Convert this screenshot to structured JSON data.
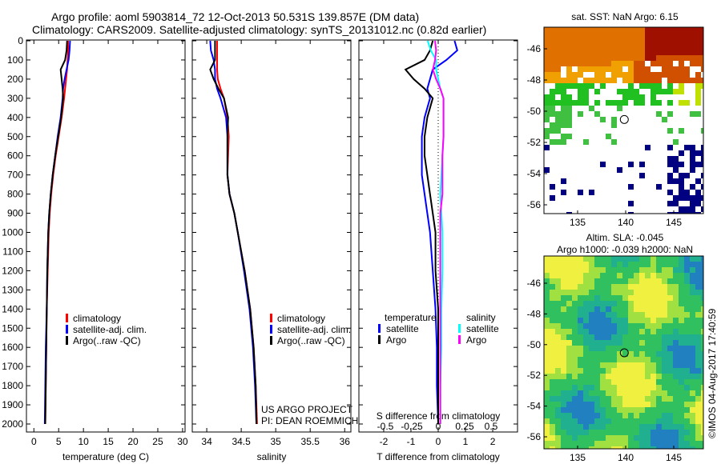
{
  "title_line1": "Argo profile: aoml 5903814_72 12-Oct-2013 50.531S 139.857E (DM data)",
  "title_line2": "Climatology: CARS2009. Satellite-adjusted climatology: synTS_20131012.nc (0.82d earlier)",
  "colors": {
    "climatology": "#ff0000",
    "satellite": "#0000ff",
    "argo": "#000000",
    "sal_satellite": "#00ffff",
    "sal_argo": "#ff00ff"
  },
  "chart_data": [
    {
      "type": "line",
      "xlabel": "temperature (deg C)",
      "ylabel": "depth",
      "xlim": [
        -1.5,
        30.5
      ],
      "ylim": [
        2040,
        0
      ],
      "xticks": [
        0,
        5,
        10,
        15,
        20,
        25,
        30
      ],
      "yticks": [
        0,
        100,
        200,
        300,
        400,
        500,
        600,
        700,
        800,
        900,
        1000,
        1100,
        1200,
        1300,
        1400,
        1500,
        1600,
        1700,
        1800,
        1900,
        2000
      ],
      "legend": [
        "climatology",
        "satellite-adj. clim.",
        "Argo(..raw -QC)"
      ],
      "depth": [
        0,
        50,
        100,
        150,
        200,
        250,
        300,
        400,
        500,
        600,
        700,
        800,
        900,
        1000,
        1200,
        1400,
        1600,
        1800,
        2000
      ],
      "series": [
        {
          "name": "climatology",
          "values": [
            6.9,
            6.9,
            6.8,
            6.7,
            6.5,
            6.3,
            6.1,
            5.6,
            5.0,
            4.4,
            3.9,
            3.5,
            3.2,
            3.0,
            2.8,
            2.6,
            2.5,
            2.4,
            2.3
          ]
        },
        {
          "name": "satellite-adj. clim.",
          "values": [
            7.3,
            7.2,
            7.0,
            6.6,
            6.2,
            5.9,
            5.8,
            5.4,
            4.8,
            4.3,
            3.8,
            3.4,
            3.1,
            2.9,
            2.7,
            2.6,
            2.4,
            2.3,
            2.2
          ]
        },
        {
          "name": "Argo(..raw -QC)",
          "values": [
            6.7,
            6.6,
            6.3,
            5.4,
            5.6,
            5.8,
            5.9,
            5.5,
            4.9,
            4.3,
            3.8,
            3.4,
            3.1,
            2.9,
            2.7,
            2.6,
            2.5,
            2.4,
            2.3
          ]
        }
      ]
    },
    {
      "type": "line",
      "xlabel": "salinity",
      "xlim": [
        33.79,
        36.09
      ],
      "ylim": [
        2040,
        0
      ],
      "xticks": [
        34,
        34.5,
        35,
        35.5,
        36
      ],
      "legend": [
        "climatology",
        "satellite-adj. clim.",
        "Argo(..raw -QC)"
      ],
      "depth": [
        0,
        50,
        100,
        150,
        200,
        250,
        300,
        400,
        500,
        600,
        700,
        800,
        900,
        1000,
        1200,
        1400,
        1600,
        1800,
        2000
      ],
      "series": [
        {
          "name": "climatology",
          "values": [
            34.15,
            34.15,
            34.15,
            34.15,
            34.16,
            34.2,
            34.25,
            34.3,
            34.32,
            34.31,
            34.3,
            34.33,
            34.4,
            34.45,
            34.55,
            34.63,
            34.68,
            34.71,
            34.73
          ]
        },
        {
          "name": "satellite-adj. clim.",
          "values": [
            34.05,
            34.06,
            34.1,
            34.12,
            34.12,
            34.15,
            34.2,
            34.28,
            34.3,
            34.3,
            34.3,
            34.33,
            34.4,
            34.45,
            34.54,
            34.62,
            34.67,
            34.7,
            34.72
          ]
        },
        {
          "name": "Argo(..raw -QC)",
          "values": [
            34.12,
            34.12,
            34.12,
            34.05,
            34.1,
            34.17,
            34.25,
            34.31,
            34.3,
            34.3,
            34.3,
            34.33,
            34.4,
            34.45,
            34.55,
            34.63,
            34.68,
            34.71,
            34.72
          ]
        }
      ]
    },
    {
      "type": "line",
      "xlabel": "T difference from climatology",
      "x2label": "S difference from climatology",
      "xlim": [
        -2.91,
        2.91
      ],
      "x2lim": [
        -0.75,
        0.75
      ],
      "xticks": [
        -2,
        -1,
        0,
        1,
        2
      ],
      "x2ticks": [
        -0.5,
        -0.25,
        0,
        0.25,
        0.5
      ],
      "x2ticklabels": [
        "-0.5",
        "-0.25",
        "0",
        "0.25",
        "0.5"
      ],
      "legend_headers": [
        "temperature",
        "salinity"
      ],
      "legend": [
        "satellite",
        "Argo",
        "satellite",
        "Argo"
      ],
      "depth": [
        0,
        50,
        100,
        150,
        200,
        250,
        300,
        400,
        500,
        600,
        700,
        800,
        900,
        1000,
        1200,
        1400,
        1600,
        1800,
        2000
      ],
      "series": [
        {
          "name": "T satellite",
          "axis": "T",
          "values": [
            0.6,
            0.7,
            0.3,
            -0.2,
            -0.3,
            -0.4,
            -0.3,
            -0.5,
            -0.6,
            -0.6,
            -0.6,
            -0.5,
            -0.4,
            -0.3,
            -0.2,
            -0.1,
            -0.05,
            -0.05,
            0
          ]
        },
        {
          "name": "T Argo",
          "axis": "T",
          "values": [
            -0.2,
            -0.3,
            -0.5,
            -1.2,
            -0.9,
            -0.5,
            -0.2,
            -0.4,
            -0.5,
            -0.5,
            -0.4,
            -0.3,
            -0.2,
            -0.1,
            -0.1,
            0,
            0,
            0,
            0
          ]
        },
        {
          "name": "S satellite",
          "axis": "S",
          "values": [
            -0.1,
            -0.07,
            -0.02,
            -0.02,
            0.0,
            0.02,
            0.05,
            0.05,
            0.05,
            0.04,
            0.03,
            0.02,
            0.03,
            0.04,
            0.04,
            0.03,
            0.03,
            0.02,
            0.02
          ]
        },
        {
          "name": "S Argo",
          "axis": "S",
          "values": [
            -0.03,
            -0.02,
            -0.03,
            -0.05,
            -0.02,
            0.02,
            0.05,
            0.05,
            0.05,
            0.04,
            0.04,
            0.04,
            0.02,
            0.02,
            0.02,
            0.02,
            0.02,
            0.02,
            0.02
          ]
        }
      ]
    }
  ],
  "annotations": {
    "project": "US ARGO PROJECT",
    "pi": "PI: DEAN ROEMMICH",
    "credit": "©IMOS 04-Aug-2017 17:40:59"
  },
  "maps": {
    "sst_title": "sat. SST: NaN Argo: 6.15",
    "sla_title1": "Altim. SLA: -0.045",
    "sla_title2": "Argo h1000: -0.039 h2000: NaN",
    "lon_ticks": [
      "135",
      "140",
      "145"
    ],
    "lat_ticks": [
      "-46",
      "-48",
      "-50",
      "-52",
      "-54",
      "-56"
    ]
  }
}
